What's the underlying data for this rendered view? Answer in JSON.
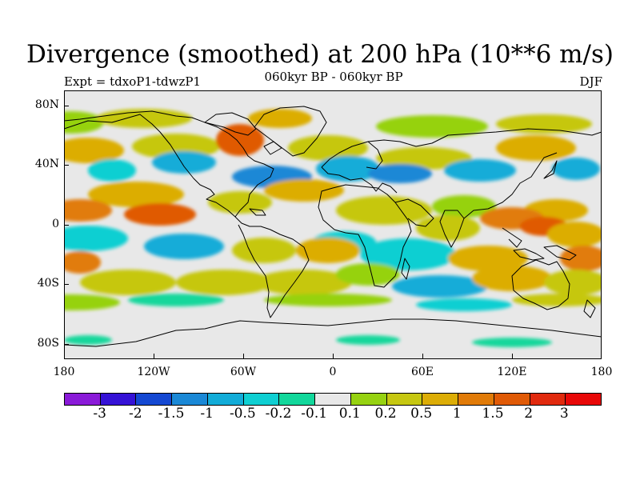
{
  "title": "Divergence (smoothed) at 200 hPa (10**6 m/s)",
  "experiment": "Expt = tdxoP1-tdwzP1",
  "period": "060kyr BP - 060kyr BP",
  "season": "DJF",
  "y_ticks": [
    "80N",
    "40N",
    "0",
    "40S",
    "80S"
  ],
  "x_ticks": [
    "180",
    "120W",
    "60W",
    "0",
    "60E",
    "120E",
    "180"
  ],
  "colorbar_labels": [
    "-3",
    "-2",
    "-1.5",
    "-1",
    "-0.5",
    "-0.2",
    "-0.1",
    "0.1",
    "0.2",
    "0.5",
    "1",
    "1.5",
    "2",
    "3"
  ],
  "colors": {
    "palette": [
      "#8a1ad8",
      "#3512d6",
      "#1448d2",
      "#1a88d6",
      "#12acd8",
      "#0fcfd2",
      "#12d79b",
      "#e8e8e8",
      "#96d211",
      "#c6c711",
      "#dcad06",
      "#e17b08",
      "#e05a06",
      "#e12a0e",
      "#e80808"
    ],
    "land_outline": "#000000",
    "background": "#e8e8e8"
  }
}
